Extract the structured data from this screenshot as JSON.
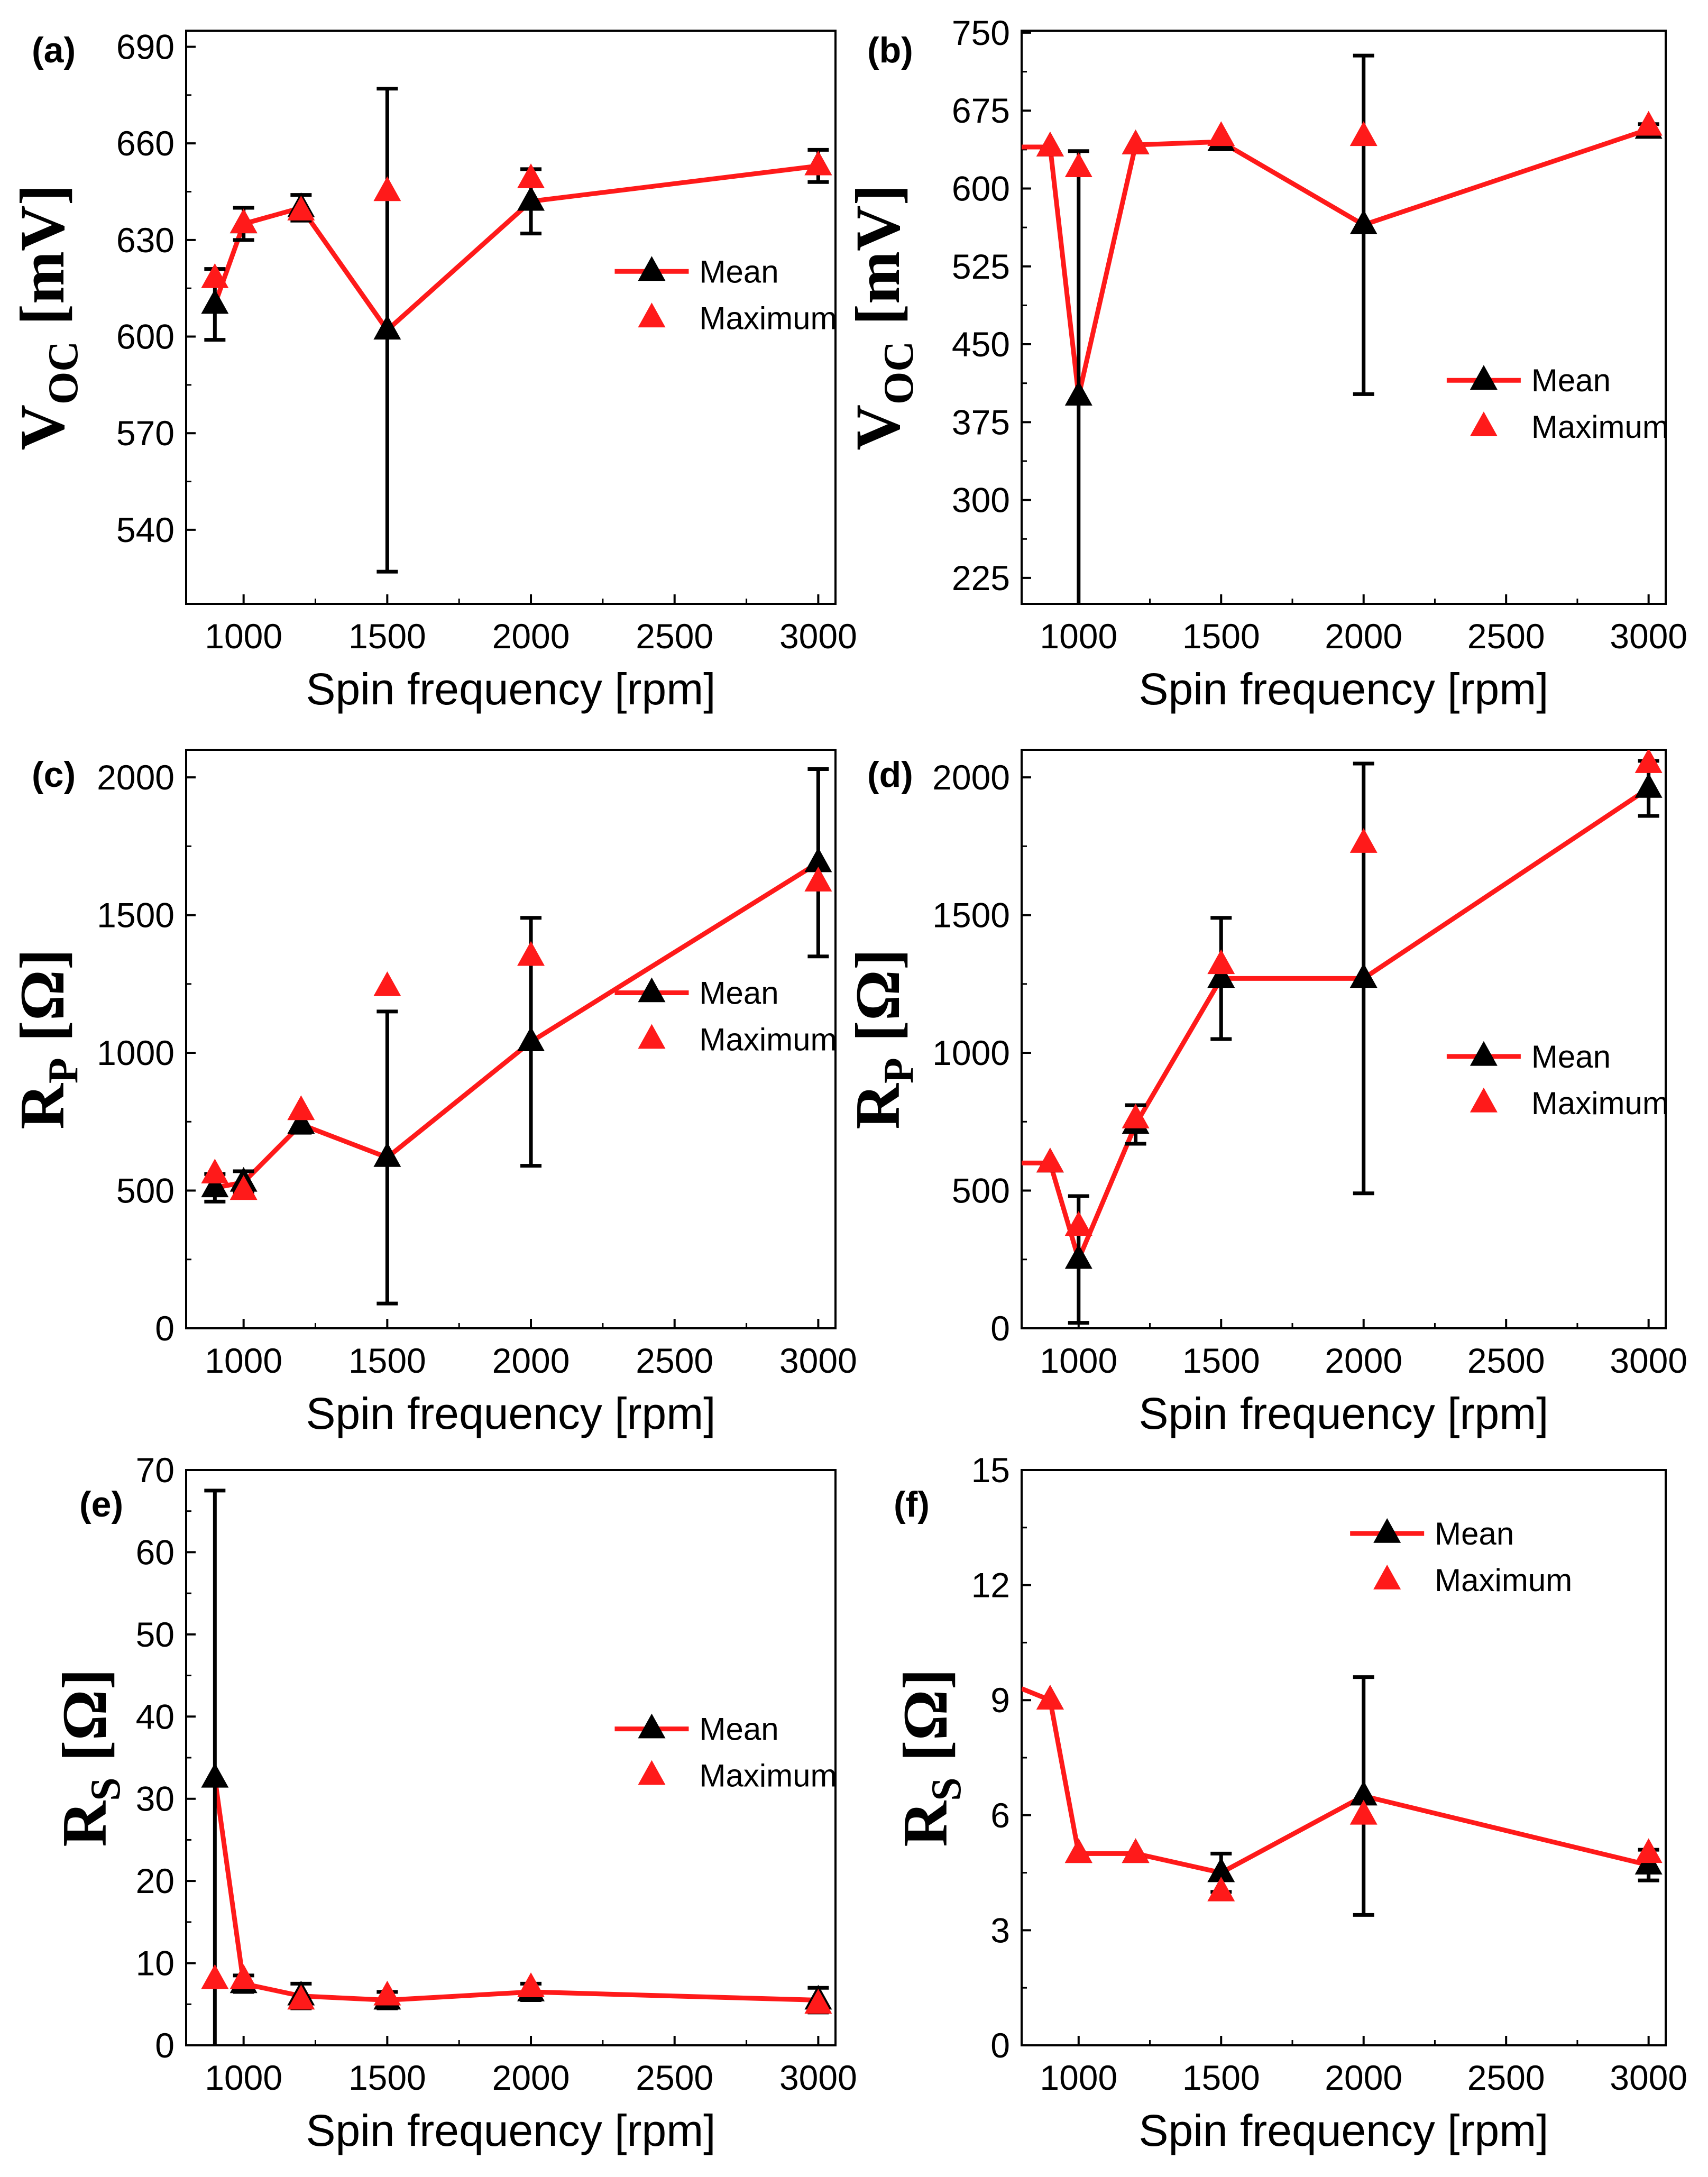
{
  "colors": {
    "mean_line": "#ff1a1a",
    "mean_marker": "#000000",
    "max_marker": "#ff1a1a",
    "errorbar": "#000000"
  },
  "chart_data": [
    {
      "type": "line",
      "panel_label": "(a)",
      "ylabel_main": "V",
      "ylabel_sub": "OC",
      "ylabel_unit": "[mV]",
      "xlabel": "Spin frequency [rpm]",
      "xlim": [
        800,
        3060
      ],
      "ylim": [
        517,
        695
      ],
      "xticks": [
        1000,
        1500,
        2000,
        2500,
        3000
      ],
      "yticks": [
        540,
        570,
        600,
        630,
        660,
        690
      ],
      "legend": {
        "position": "right-middle",
        "entries": [
          "Mean",
          "Maximum"
        ]
      },
      "series": [
        {
          "name": "Mean",
          "x": [
            900,
            1000,
            1200,
            1500,
            2000,
            3000
          ],
          "y": [
            610,
            635,
            640,
            602,
            642,
            653
          ],
          "err": [
            11,
            5,
            4,
            75,
            10,
            5
          ],
          "line_start_x": 900
        },
        {
          "name": "Maximum",
          "x": [
            900,
            1000,
            1200,
            1500,
            2000,
            3000
          ],
          "y": [
            618,
            635,
            639,
            645,
            649,
            653
          ]
        }
      ]
    },
    {
      "type": "line",
      "panel_label": "(b)",
      "ylabel_main": "V",
      "ylabel_sub": "OC",
      "ylabel_unit": "[mV]",
      "xlabel": "Spin frequency [rpm]",
      "xlim": [
        800,
        3060
      ],
      "ylim": [
        200,
        752
      ],
      "xticks": [
        1000,
        1500,
        2000,
        2500,
        3000
      ],
      "yticks": [
        225,
        300,
        375,
        450,
        525,
        600,
        675,
        750
      ],
      "legend": {
        "position": "right-middle",
        "entries": [
          "Mean",
          "Maximum"
        ]
      },
      "series": [
        {
          "name": "Mean",
          "x": [
            900,
            1000,
            1200,
            1500,
            2000,
            3000
          ],
          "y": [
            640,
            400,
            642,
            645,
            565,
            657
          ],
          "err": [
            0,
            236,
            0,
            0,
            163,
            5
          ],
          "line_start_x": 800
        },
        {
          "name": "Maximum",
          "x": [
            900,
            1000,
            1200,
            1500,
            2000,
            3000
          ],
          "y": [
            640,
            620,
            642,
            650,
            650,
            660
          ]
        }
      ]
    },
    {
      "type": "line",
      "panel_label": "(c)",
      "ylabel_main": "R",
      "ylabel_sub": "P",
      "ylabel_unit": "[Ω]",
      "xlabel": "Spin frequency [rpm]",
      "xlim": [
        800,
        3060
      ],
      "ylim": [
        0,
        2100
      ],
      "xticks": [
        1000,
        1500,
        2000,
        2500,
        3000
      ],
      "yticks": [
        0,
        500,
        1000,
        1500,
        2000
      ],
      "legend": {
        "position": "right-middle",
        "entries": [
          "Mean",
          "Maximum"
        ]
      },
      "series": [
        {
          "name": "Mean",
          "x": [
            900,
            1000,
            1200,
            1500,
            2000,
            3000
          ],
          "y": [
            510,
            530,
            740,
            620,
            1040,
            1690
          ],
          "err": [
            50,
            40,
            30,
            530,
            450,
            340
          ],
          "line_start_x": 900
        },
        {
          "name": "Maximum",
          "x": [
            900,
            1000,
            1200,
            1500,
            2000,
            3000
          ],
          "y": [
            560,
            500,
            790,
            1240,
            1350,
            1620
          ]
        }
      ]
    },
    {
      "type": "line",
      "panel_label": "(d)",
      "ylabel_main": "R",
      "ylabel_sub": "P",
      "ylabel_unit": "[Ω]",
      "xlabel": "Spin frequency [rpm]",
      "xlim": [
        800,
        3060
      ],
      "ylim": [
        0,
        2100
      ],
      "xticks": [
        1000,
        1500,
        2000,
        2500,
        3000
      ],
      "yticks": [
        0,
        500,
        1000,
        1500,
        2000
      ],
      "legend": {
        "position": "right-middle",
        "entries": [
          "Mean",
          "Maximum"
        ]
      },
      "series": [
        {
          "name": "Mean",
          "x": [
            900,
            1000,
            1200,
            1500,
            2000,
            3000
          ],
          "y": [
            600,
            250,
            740,
            1270,
            1270,
            1960
          ],
          "err": [
            0,
            230,
            70,
            220,
            780,
            100
          ],
          "line_start_x": 800
        },
        {
          "name": "Maximum",
          "x": [
            900,
            1000,
            1200,
            1500,
            2000,
            3000
          ],
          "y": [
            600,
            370,
            760,
            1320,
            1760,
            2050
          ]
        }
      ]
    },
    {
      "type": "line",
      "panel_label": "(e)",
      "ylabel_main": "R",
      "ylabel_sub": "S",
      "ylabel_unit": "[Ω]",
      "xlabel": "Spin frequency [rpm]",
      "xlim": [
        800,
        3060
      ],
      "ylim": [
        0,
        70
      ],
      "xticks": [
        1000,
        1500,
        2000,
        2500,
        3000
      ],
      "yticks": [
        0,
        10,
        20,
        30,
        40,
        50,
        60,
        70
      ],
      "legend": {
        "position": "right-middle",
        "entries": [
          "Mean",
          "Maximum"
        ]
      },
      "series": [
        {
          "name": "Mean",
          "x": [
            900,
            1000,
            1200,
            1500,
            2000,
            3000
          ],
          "y": [
            32.5,
            7.5,
            6,
            5.5,
            6.5,
            5.5
          ],
          "err": [
            35,
            1,
            1.5,
            1,
            1,
            1.5
          ],
          "line_start_x": 900
        },
        {
          "name": "Maximum",
          "x": [
            900,
            1000,
            1200,
            1500,
            2000,
            3000
          ],
          "y": [
            8,
            8,
            5.5,
            6,
            7,
            5
          ]
        }
      ]
    },
    {
      "type": "line",
      "panel_label": "(f)",
      "ylabel_main": "R",
      "ylabel_sub": "S",
      "ylabel_unit": "[Ω]",
      "xlabel": "Spin frequency [rpm]",
      "xlim": [
        800,
        3060
      ],
      "ylim": [
        0,
        15
      ],
      "xticks": [
        1000,
        1500,
        2000,
        2500,
        3000
      ],
      "yticks": [
        0,
        3,
        6,
        9,
        12,
        15
      ],
      "legend": {
        "position": "top-right",
        "entries": [
          "Mean",
          "Maximum"
        ]
      },
      "series": [
        {
          "name": "Mean",
          "x": [
            900,
            1000,
            1200,
            1500,
            2000,
            3000
          ],
          "y": [
            9,
            5,
            5,
            4.5,
            6.5,
            4.7
          ],
          "err": [
            0,
            0,
            0,
            0.5,
            3.1,
            0.4
          ],
          "line_start_x": 800,
          "line_start_y": 9.3
        },
        {
          "name": "Maximum",
          "x": [
            900,
            1000,
            1200,
            1500,
            2000,
            3000
          ],
          "y": [
            9,
            5,
            5,
            4,
            6,
            5
          ]
        }
      ]
    }
  ]
}
